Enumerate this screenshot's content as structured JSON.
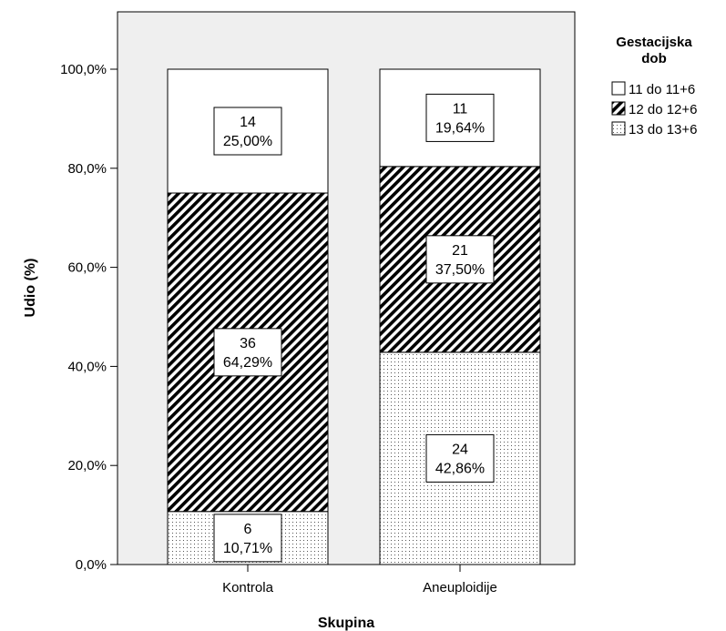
{
  "chart_data": {
    "type": "bar",
    "stacked": true,
    "categories": [
      "Kontrola",
      "Aneuploidije"
    ],
    "xlabel": "Skupina",
    "ylabel": "Udio (%)",
    "ylim": [
      0,
      100
    ],
    "y_ticks": [
      "0,0%",
      "20,0%",
      "40,0%",
      "60,0%",
      "80,0%",
      "100,0%"
    ],
    "legend": {
      "title_lines": [
        "Gestacijska",
        "dob"
      ],
      "placement": "top-right"
    },
    "series": [
      {
        "name": "13 do 13+6",
        "pattern": "dots",
        "values": [
          10.71,
          42.86
        ],
        "counts": [
          "6",
          "24"
        ],
        "labels": [
          "10,71%",
          "42,86%"
        ]
      },
      {
        "name": "12 do 12+6",
        "pattern": "diagonal-hatch",
        "values": [
          64.29,
          37.5
        ],
        "counts": [
          "36",
          "21"
        ],
        "labels": [
          "64,29%",
          "37,50%"
        ]
      },
      {
        "name": "11 do 11+6",
        "pattern": "solid-white",
        "values": [
          25.0,
          19.64
        ],
        "counts": [
          "14",
          "11"
        ],
        "labels": [
          "25,00%",
          "19,64%"
        ]
      }
    ],
    "colors": {
      "plot_background": "#efefef",
      "bar_fill": "#ffffff",
      "ink": "#000000"
    }
  }
}
